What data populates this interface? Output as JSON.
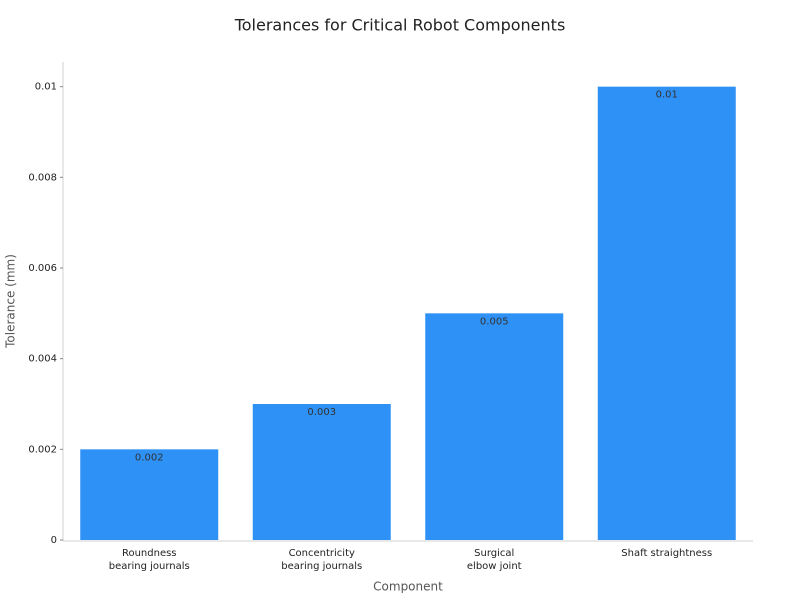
{
  "chart_data": {
    "type": "bar",
    "title": "Tolerances for Critical Robot Components",
    "x_label": "Component",
    "y_label": "Tolerance (mm)",
    "categories": [
      "Roundness\nbearing journals",
      "Concentricity\nbearing journals",
      "Surgical\nelbow joint",
      "Shaft straightness"
    ],
    "values": [
      0.002,
      0.003,
      0.005,
      0.01
    ],
    "color": "#2e91f5",
    "ylim": [
      0,
      0.0105
    ],
    "yticks": [
      0,
      0.002,
      0.004,
      0.006,
      0.008,
      0.01
    ],
    "grid": false
  }
}
